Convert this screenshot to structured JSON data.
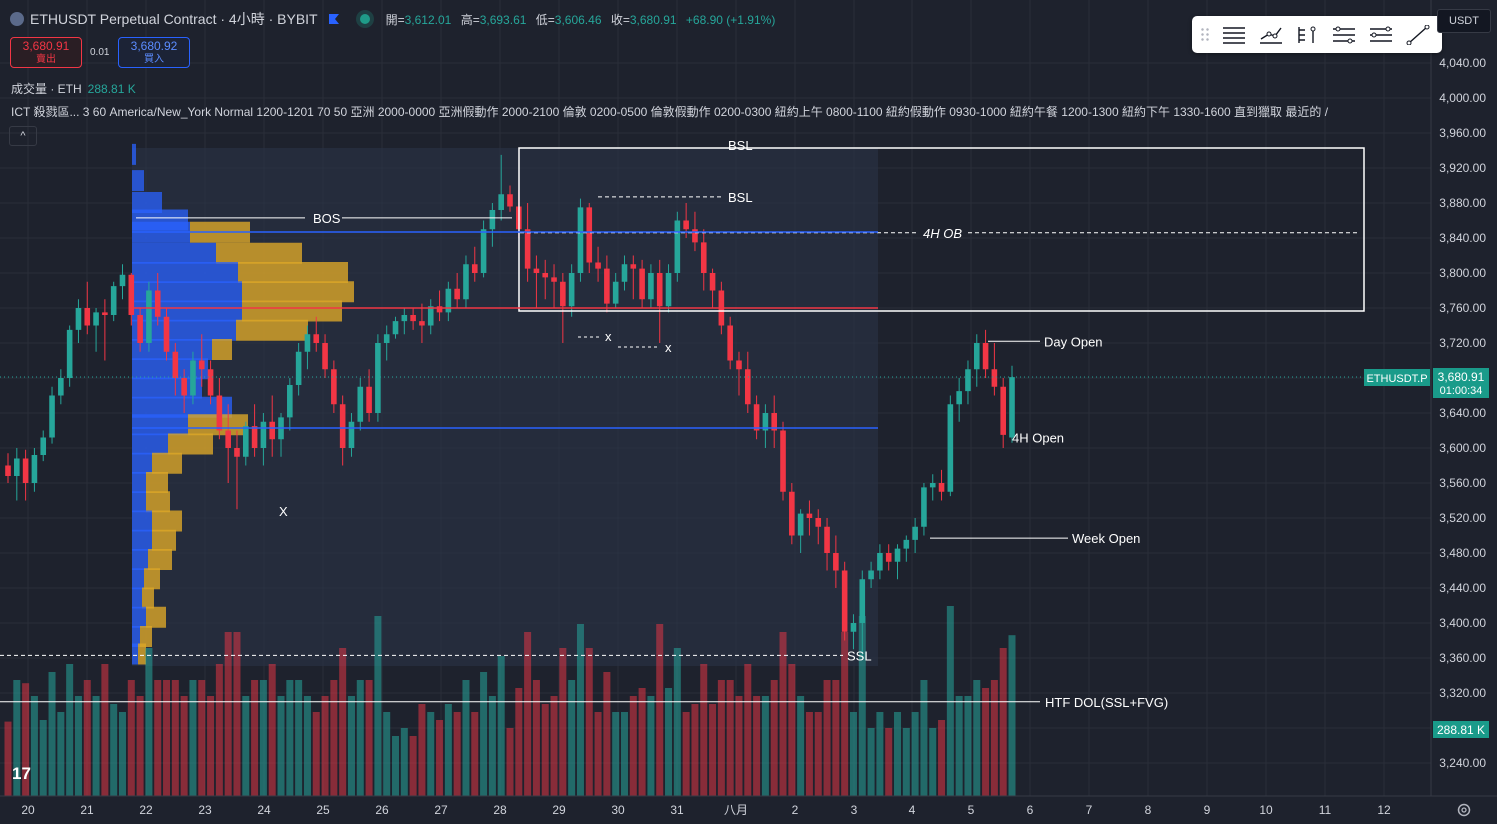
{
  "header": {
    "symbol": "ETHUSDT Perpetual Contract · 4小時 · BYBIT",
    "ohlc": {
      "open_label": "開=",
      "open": "3,612.01",
      "high_label": "高=",
      "high": "3,693.61",
      "low_label": "低=",
      "low": "3,606.46",
      "close_label": "收=",
      "close": "3,680.91",
      "change": "+68.90 (+1.91%)"
    },
    "sell_price": "3,680.91",
    "sell_label": "賣出",
    "spread": "0.01",
    "buy_price": "3,680.92",
    "buy_label": "買入",
    "volume_label": "成交量 · ETH",
    "volume_value": "288.81 K",
    "ict_line": "ICT 殺戮區...   3 60 America/New_York Normal 1200-1201 70 50 亞洲 2000-0000 亞洲假動作 2000-2100 倫敦 0200-0500 倫敦假動作 0200-0300 紐約上午 0800-1100 紐約假動作 0930-1000 紐約午餐 1200-1300 紐約下午 1330-1600 直到獵取 最近的 /",
    "collapse_glyph": "^",
    "quote_currency": "USDT"
  },
  "toolbar": {
    "tools": [
      "horizontal-lines-icon",
      "path-icon",
      "anchored-lines-icon",
      "parallel-lines-icon",
      "channel-lines-icon",
      "trend-line-icon"
    ]
  },
  "colors": {
    "bg": "#1e222d",
    "up": "#26a69a",
    "down": "#f23645",
    "blue": "#2962ff",
    "grid": "#2a2e39"
  },
  "chart_data": {
    "type": "candlestick",
    "title": "ETHUSDT Perpetual Contract · 4小時 · BYBIT",
    "y_axis": {
      "min": 3220,
      "max": 4060,
      "ticks": [
        4040,
        4000,
        3960,
        3920,
        3880,
        3840,
        3800,
        3760,
        3720,
        3680,
        3640,
        3600,
        3560,
        3520,
        3480,
        3440,
        3400,
        3360,
        3320,
        3280,
        3240
      ]
    },
    "x_axis": {
      "labels": [
        "20",
        "21",
        "22",
        "23",
        "24",
        "25",
        "26",
        "27",
        "28",
        "29",
        "30",
        "31",
        "八月",
        "2",
        "3",
        "4",
        "5",
        "6",
        "7",
        "8",
        "9",
        "10",
        "11",
        "12"
      ]
    },
    "candles": [
      [
        3580,
        3594,
        3560,
        3568
      ],
      [
        3568,
        3600,
        3540,
        3588
      ],
      [
        3588,
        3598,
        3540,
        3560
      ],
      [
        3560,
        3600,
        3550,
        3592
      ],
      [
        3592,
        3620,
        3585,
        3612
      ],
      [
        3612,
        3670,
        3605,
        3660
      ],
      [
        3660,
        3690,
        3650,
        3680
      ],
      [
        3680,
        3740,
        3670,
        3735
      ],
      [
        3735,
        3770,
        3720,
        3760
      ],
      [
        3760,
        3790,
        3730,
        3740
      ],
      [
        3740,
        3760,
        3710,
        3755
      ],
      [
        3755,
        3770,
        3700,
        3752
      ],
      [
        3752,
        3790,
        3745,
        3785
      ],
      [
        3785,
        3810,
        3770,
        3798
      ],
      [
        3798,
        3800,
        3740,
        3752
      ],
      [
        3752,
        3760,
        3710,
        3720
      ],
      [
        3720,
        3790,
        3710,
        3780
      ],
      [
        3780,
        3800,
        3740,
        3750
      ],
      [
        3750,
        3760,
        3700,
        3710
      ],
      [
        3710,
        3720,
        3660,
        3680
      ],
      [
        3680,
        3690,
        3640,
        3660
      ],
      [
        3660,
        3710,
        3650,
        3700
      ],
      [
        3700,
        3730,
        3670,
        3690
      ],
      [
        3690,
        3700,
        3650,
        3660
      ],
      [
        3660,
        3680,
        3610,
        3620
      ],
      [
        3620,
        3650,
        3560,
        3600
      ],
      [
        3600,
        3620,
        3530,
        3590
      ],
      [
        3590,
        3630,
        3580,
        3625
      ],
      [
        3625,
        3650,
        3590,
        3600
      ],
      [
        3600,
        3640,
        3580,
        3630
      ],
      [
        3630,
        3660,
        3590,
        3610
      ],
      [
        3610,
        3640,
        3590,
        3635
      ],
      [
        3635,
        3680,
        3620,
        3672
      ],
      [
        3672,
        3720,
        3660,
        3710
      ],
      [
        3710,
        3740,
        3690,
        3730
      ],
      [
        3730,
        3750,
        3710,
        3720
      ],
      [
        3720,
        3730,
        3680,
        3690
      ],
      [
        3690,
        3700,
        3640,
        3650
      ],
      [
        3650,
        3660,
        3580,
        3600
      ],
      [
        3600,
        3640,
        3590,
        3630
      ],
      [
        3630,
        3680,
        3620,
        3670
      ],
      [
        3670,
        3690,
        3630,
        3640
      ],
      [
        3640,
        3730,
        3630,
        3720
      ],
      [
        3720,
        3740,
        3700,
        3730
      ],
      [
        3730,
        3750,
        3725,
        3745
      ],
      [
        3745,
        3760,
        3730,
        3752
      ],
      [
        3752,
        3760,
        3735,
        3745
      ],
      [
        3745,
        3765,
        3720,
        3740
      ],
      [
        3740,
        3770,
        3730,
        3762
      ],
      [
        3762,
        3780,
        3745,
        3755
      ],
      [
        3755,
        3790,
        3745,
        3782
      ],
      [
        3782,
        3800,
        3760,
        3770
      ],
      [
        3770,
        3820,
        3760,
        3810
      ],
      [
        3810,
        3830,
        3790,
        3800
      ],
      [
        3800,
        3860,
        3795,
        3850
      ],
      [
        3850,
        3880,
        3830,
        3872
      ],
      [
        3872,
        3935,
        3860,
        3890
      ],
      [
        3890,
        3900,
        3870,
        3876
      ],
      [
        3876,
        3895,
        3840,
        3850
      ],
      [
        3850,
        3880,
        3790,
        3805
      ],
      [
        3805,
        3820,
        3760,
        3800
      ],
      [
        3800,
        3815,
        3770,
        3795
      ],
      [
        3795,
        3810,
        3760,
        3790
      ],
      [
        3790,
        3800,
        3720,
        3762
      ],
      [
        3762,
        3810,
        3750,
        3800
      ],
      [
        3800,
        3885,
        3790,
        3875
      ],
      [
        3875,
        3880,
        3800,
        3812
      ],
      [
        3812,
        3830,
        3790,
        3805
      ],
      [
        3805,
        3820,
        3755,
        3765
      ],
      [
        3765,
        3800,
        3760,
        3790
      ],
      [
        3790,
        3820,
        3780,
        3810
      ],
      [
        3810,
        3820,
        3770,
        3805
      ],
      [
        3805,
        3815,
        3760,
        3770
      ],
      [
        3770,
        3810,
        3760,
        3800
      ],
      [
        3800,
        3815,
        3720,
        3762
      ],
      [
        3762,
        3810,
        3755,
        3800
      ],
      [
        3800,
        3870,
        3790,
        3860
      ],
      [
        3860,
        3880,
        3840,
        3850
      ],
      [
        3850,
        3870,
        3825,
        3835
      ],
      [
        3835,
        3850,
        3780,
        3800
      ],
      [
        3800,
        3805,
        3760,
        3780
      ],
      [
        3780,
        3790,
        3730,
        3740
      ],
      [
        3740,
        3750,
        3690,
        3700
      ],
      [
        3700,
        3710,
        3660,
        3690
      ],
      [
        3690,
        3710,
        3640,
        3650
      ],
      [
        3650,
        3660,
        3610,
        3620
      ],
      [
        3620,
        3650,
        3600,
        3640
      ],
      [
        3640,
        3660,
        3600,
        3620
      ],
      [
        3620,
        3630,
        3540,
        3550
      ],
      [
        3550,
        3560,
        3490,
        3500
      ],
      [
        3500,
        3530,
        3480,
        3525
      ],
      [
        3525,
        3540,
        3500,
        3520
      ],
      [
        3520,
        3530,
        3490,
        3510
      ],
      [
        3510,
        3520,
        3460,
        3480
      ],
      [
        3480,
        3500,
        3440,
        3460
      ],
      [
        3460,
        3470,
        3380,
        3390
      ],
      [
        3390,
        3410,
        3370,
        3400
      ],
      [
        3400,
        3460,
        3360,
        3450
      ],
      [
        3450,
        3470,
        3440,
        3460
      ],
      [
        3460,
        3490,
        3450,
        3480
      ],
      [
        3480,
        3490,
        3460,
        3470
      ],
      [
        3470,
        3490,
        3450,
        3485
      ],
      [
        3485,
        3500,
        3470,
        3495
      ],
      [
        3495,
        3520,
        3480,
        3510
      ],
      [
        3510,
        3560,
        3500,
        3555
      ],
      [
        3555,
        3570,
        3540,
        3560
      ],
      [
        3560,
        3575,
        3540,
        3550
      ],
      [
        3550,
        3660,
        3545,
        3650
      ],
      [
        3650,
        3680,
        3630,
        3665
      ],
      [
        3665,
        3700,
        3650,
        3690
      ],
      [
        3690,
        3730,
        3670,
        3720
      ],
      [
        3720,
        3735,
        3680,
        3690
      ],
      [
        3690,
        3720,
        3660,
        3670
      ],
      [
        3670,
        3680,
        3600,
        3615
      ],
      [
        3612,
        3694,
        3606,
        3681
      ]
    ],
    "volume_range_max": 100000,
    "levels": [
      {
        "label": "BSL",
        "price": 3920
      },
      {
        "label": "BSL",
        "price": 3887
      },
      {
        "label": "4H OB",
        "price": 3846
      },
      {
        "label": "BOS",
        "price": 3863
      },
      {
        "label": "Day Open",
        "price": 3722
      },
      {
        "label": "4H Open",
        "price": 3612
      },
      {
        "label": "Week Open",
        "price": 3497
      },
      {
        "label": "SSL",
        "price": 3363
      },
      {
        "label": "HTF DOL(SSL+FVG)",
        "price": 3310
      }
    ],
    "markers": [
      "x",
      "x",
      "X"
    ],
    "last_price_label": "ETHUSDT.P",
    "last_price": "3,680.91",
    "countdown": "01:00:34",
    "volume_last": "288.81 K"
  }
}
